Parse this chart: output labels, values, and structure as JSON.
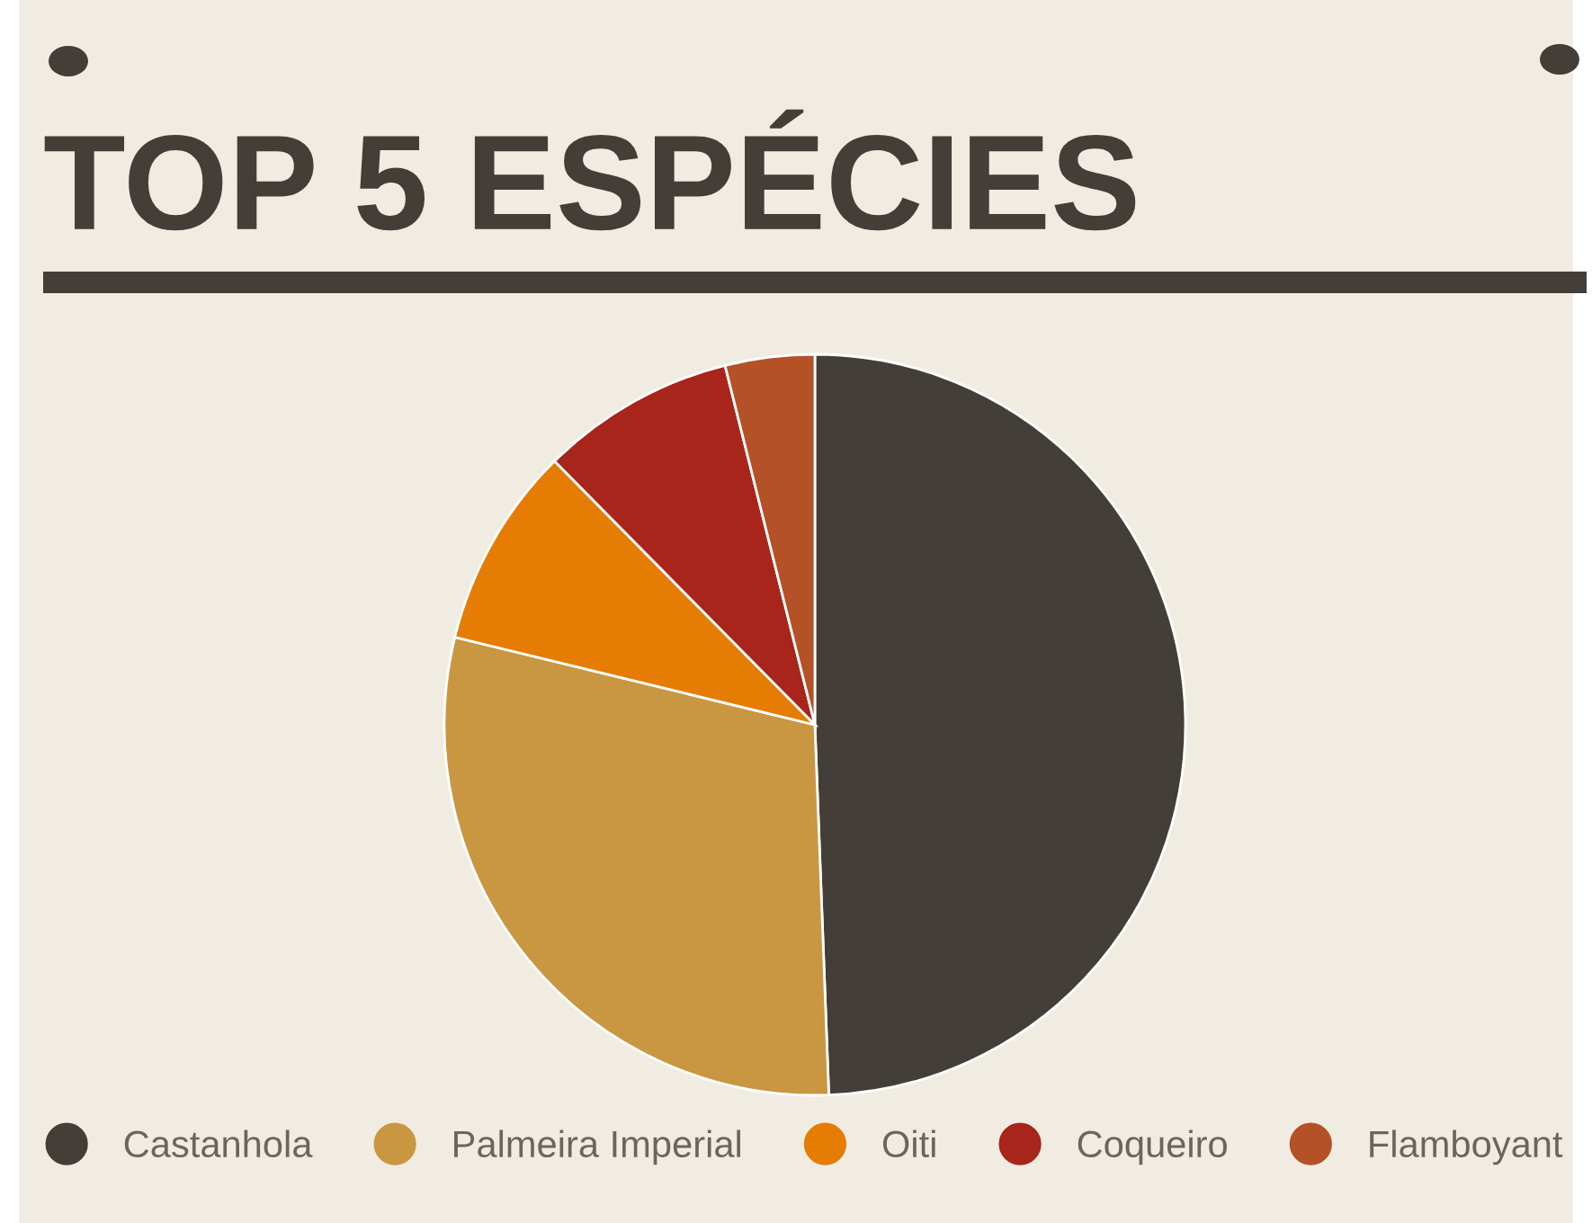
{
  "chart_data": {
    "type": "pie",
    "title": "TOP 5 ESPÉCIES",
    "categories": [
      "Castanhola",
      "Palmeira Imperial",
      "Oiti",
      "Coqueiro",
      "Flamboyant"
    ],
    "values": [
      49.4,
      29.4,
      8.8,
      8.5,
      3.9
    ],
    "colors": [
      "#433f38",
      "#c99741",
      "#e57c03",
      "#a8251c",
      "#b45127"
    ],
    "legend": "bottom"
  }
}
